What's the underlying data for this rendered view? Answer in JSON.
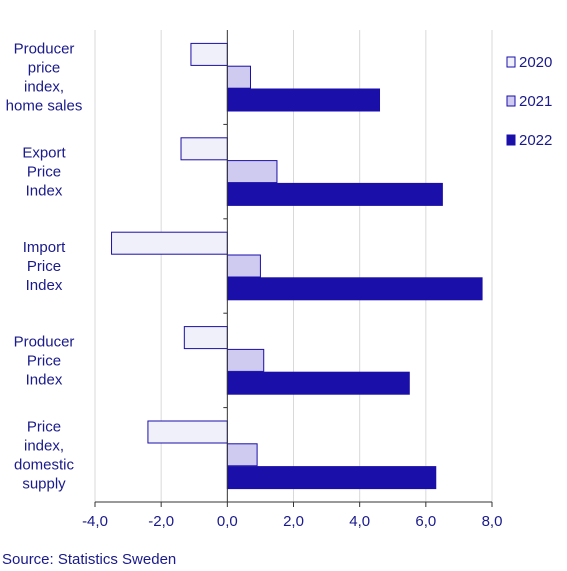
{
  "chart_data": {
    "type": "bar",
    "orientation": "horizontal",
    "categories": [
      [
        "Producer",
        "price",
        "index,",
        "home sales"
      ],
      [
        "Export",
        "Price",
        "Index"
      ],
      [
        "Import",
        "Price",
        "Index"
      ],
      [
        "Producer",
        "Price",
        "Index"
      ],
      [
        "Price",
        "index,",
        "domestic",
        "supply"
      ]
    ],
    "series": [
      {
        "name": "2020",
        "values": [
          -1.1,
          -1.4,
          -3.5,
          -1.3,
          -2.4
        ],
        "color": "#f0f0fa"
      },
      {
        "name": "2021",
        "values": [
          0.7,
          1.5,
          1.0,
          1.1,
          0.9
        ],
        "color": "#cfcaf0"
      },
      {
        "name": "2022",
        "values": [
          4.6,
          6.5,
          7.7,
          5.5,
          6.3
        ],
        "color": "#1a0fa8"
      }
    ],
    "xlim": [
      -4.0,
      8.0
    ],
    "xticks": [
      "-4,0",
      "-2,0",
      "0,0",
      "2,0",
      "4,0",
      "6,0",
      "8,0"
    ],
    "xtick_values": [
      -4,
      -2,
      0,
      2,
      4,
      6,
      8
    ],
    "grid": true,
    "legend_position": "right",
    "text_color": "#1a1a8c",
    "bar_stroke": "#1a0fa8",
    "grid_color": "#d9d9d9"
  },
  "source": "Source: Statistics Sweden"
}
